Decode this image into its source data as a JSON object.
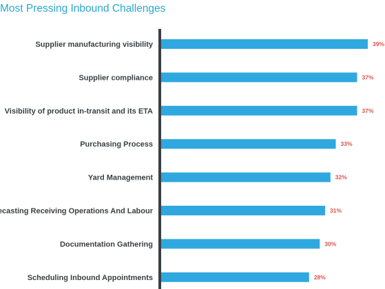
{
  "chart_data": {
    "type": "bar",
    "orientation": "horizontal",
    "title": "Most Pressing Inbound Challenges",
    "categories": [
      "Supplier manufacturing visibility",
      "Supplier compliance",
      "Visibility of product in-transit and its ETA",
      "Purchasing Process",
      "Yard Management",
      "Forecasting Receiving Operations And Labour",
      "Documentation Gathering",
      "Scheduling Inbound Appointments"
    ],
    "values": [
      39,
      37,
      37,
      33,
      32,
      31,
      30,
      28
    ],
    "value_labels": [
      "39%",
      "37%",
      "37%",
      "33%",
      "32%",
      "31%",
      "30%",
      "28%"
    ],
    "xlim": [
      0,
      39
    ],
    "grid": false,
    "legend": "none"
  },
  "colors": {
    "bar": "#2fa8e0",
    "axis": "#3a3f44",
    "category_text": "#3a3f44",
    "value_text": "#d9534f",
    "title": "#2aa7cf"
  }
}
